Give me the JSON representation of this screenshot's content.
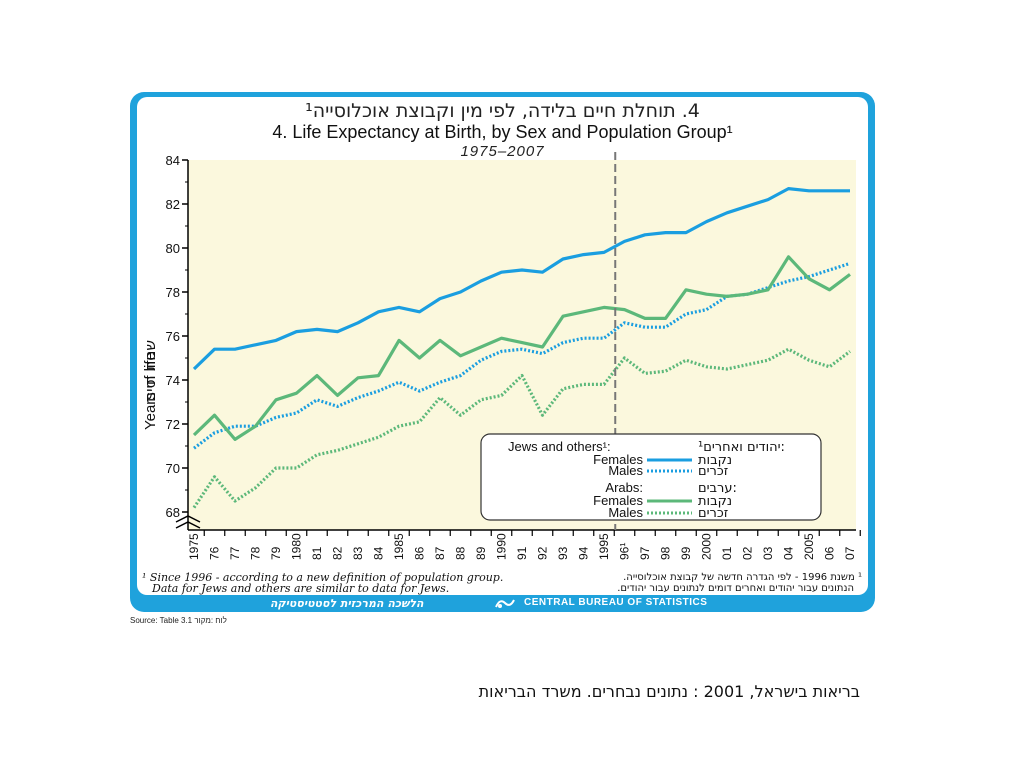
{
  "header": {
    "title_he": "4. תוחלת חיים בלידה, לפי מין וקבוצת אוכלוסייה¹",
    "title_en": "4.  Life Expectancy at Birth, by Sex and Population Group¹",
    "years": "1975–2007"
  },
  "footnote": {
    "en_line1": "¹ Since 1996 - according to a new definition of population group.",
    "en_line2": "Data for Jews and others are similar to data for Jews.",
    "he_line1": "¹ משנת 1996 - לפי הגדרה חדשה של קבוצת אוכלוסייה.",
    "he_line2": "הנתונים עבור יהודים ואחרים דומים לנתונים עבור יהודים."
  },
  "footer": {
    "en": "CENTRAL BUREAU OF STATISTICS",
    "he": "הלשכה המרכזית לסטטיסטיקה"
  },
  "source": "Source: Table 3.1 לוח :מקור",
  "caption": "בריאות בישראל, 2001 : נתונים נבחרים. משרד הבריאות",
  "colors": {
    "frame": "#1fa2dc",
    "plot_bg": "#fbf8dd",
    "jews_color": "#1a9ee0",
    "arabs_color": "#5cb87a"
  },
  "chart_data": {
    "type": "line",
    "ylabel_en": "Years of life",
    "ylabel_he": "שנות חיים",
    "ylim": [
      68,
      84
    ],
    "yticks": [
      "68",
      "70",
      "72",
      "74",
      "76",
      "78",
      "80",
      "82",
      "84"
    ],
    "x": [
      1975,
      1976,
      1977,
      1978,
      1979,
      1980,
      1981,
      1982,
      1983,
      1984,
      1985,
      1986,
      1987,
      1988,
      1989,
      1990,
      1991,
      1992,
      1993,
      1994,
      1995,
      1996,
      1997,
      1998,
      1999,
      2000,
      2001,
      2002,
      2003,
      2004,
      2005,
      2006,
      2007
    ],
    "xticks": [
      "1975",
      "76",
      "77",
      "78",
      "79",
      "1980",
      "81",
      "82",
      "83",
      "84",
      "1985",
      "86",
      "87",
      "88",
      "89",
      "1990",
      "91",
      "92",
      "93",
      "94",
      "1995",
      "96¹",
      "97",
      "98",
      "99",
      "2000",
      "01",
      "02",
      "03",
      "04",
      "2005",
      "06",
      "07"
    ],
    "break_year": 1996,
    "legend": {
      "group1_en": "Jews and others¹:",
      "group1_he": "יהודים ואחרים¹:",
      "group2_en": "Arabs:",
      "group2_he": "ערבים:",
      "females_en": "Females",
      "males_en": "Males",
      "females_he": "נקבות",
      "males_he": "זכרים"
    },
    "series": [
      {
        "key": "jews_females",
        "values": [
          74.5,
          75.4,
          75.4,
          75.6,
          75.8,
          76.2,
          76.3,
          76.2,
          76.6,
          77.1,
          77.3,
          77.1,
          77.7,
          78.0,
          78.5,
          78.9,
          79.0,
          78.9,
          79.5,
          79.7,
          79.8,
          80.3,
          80.6,
          80.7,
          80.7,
          81.2,
          81.6,
          81.9,
          82.2,
          82.7,
          82.6,
          82.6,
          82.6
        ]
      },
      {
        "key": "jews_males",
        "values": [
          70.9,
          71.6,
          71.9,
          71.9,
          72.3,
          72.5,
          73.1,
          72.8,
          73.2,
          73.5,
          73.9,
          73.5,
          73.9,
          74.2,
          74.9,
          75.3,
          75.4,
          75.2,
          75.7,
          75.9,
          75.9,
          76.6,
          76.4,
          76.4,
          77.0,
          77.2,
          77.8,
          77.9,
          78.2,
          78.5,
          78.7,
          79.0,
          79.3
        ]
      },
      {
        "key": "arabs_females",
        "values": [
          71.5,
          72.4,
          71.3,
          71.9,
          73.1,
          73.4,
          74.2,
          73.3,
          74.1,
          74.2,
          75.8,
          75.0,
          75.8,
          75.1,
          75.5,
          75.9,
          75.7,
          75.5,
          76.9,
          77.1,
          77.3,
          77.2,
          76.8,
          76.8,
          78.1,
          77.9,
          77.8,
          77.9,
          78.1,
          79.6,
          78.6,
          78.1,
          78.8
        ]
      },
      {
        "key": "arabs_males",
        "values": [
          68.2,
          69.6,
          68.5,
          69.1,
          70.0,
          70.0,
          70.6,
          70.8,
          71.1,
          71.4,
          71.9,
          72.1,
          73.2,
          72.4,
          73.1,
          73.3,
          74.2,
          72.4,
          73.6,
          73.8,
          73.8,
          75.0,
          74.3,
          74.4,
          74.9,
          74.6,
          74.5,
          74.7,
          74.9,
          75.4,
          74.9,
          74.6,
          75.3
        ]
      }
    ]
  }
}
